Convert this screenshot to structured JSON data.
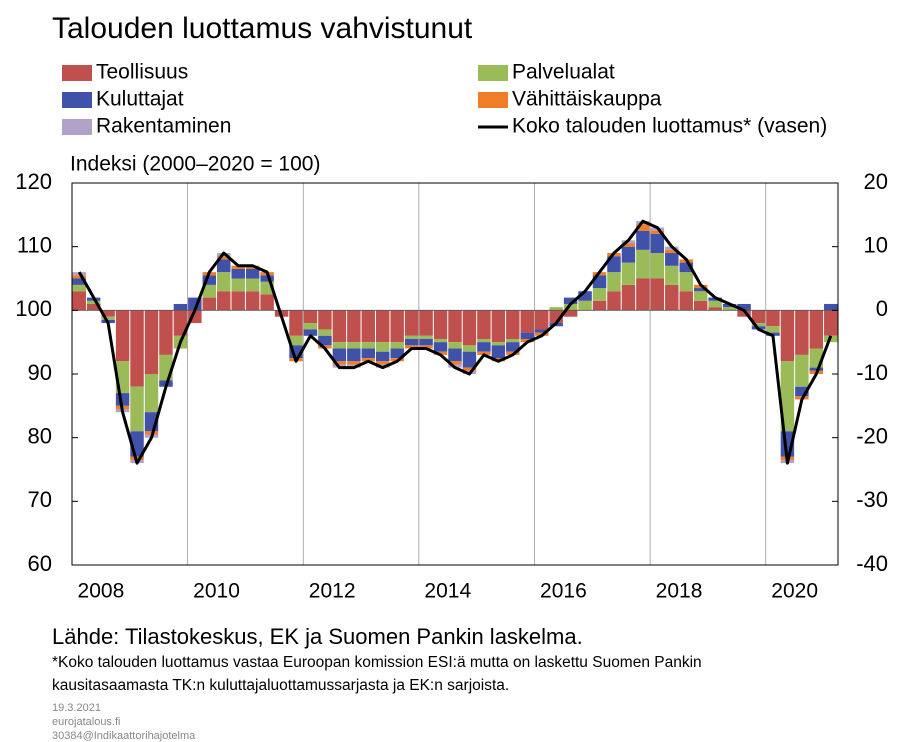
{
  "chart_data": {
    "type": "bar",
    "title": "Talouden luottamus vahvistunut",
    "ylabel": "Indeksi (2000–2020 = 100)",
    "source": "Lähde: Tilastokeskus, EK ja Suomen Pankin laskelma.",
    "note": [
      "*Koko talouden luottamus vastaa Euroopan komission ESI:ä mutta on laskettu Suomen Pankin",
      "kausitasaamasta TK:n kuluttajaluottamussarjasta ja EK:n sarjoista."
    ],
    "footer": [
      "19.3.2021",
      "eurojatalous.fi",
      "30384@Indikaattorihajotelma"
    ],
    "categories": [
      "2008",
      null,
      null,
      null,
      null,
      null,
      null,
      null,
      "2010",
      null,
      null,
      null,
      null,
      null,
      null,
      null,
      "2012",
      null,
      null,
      null,
      null,
      null,
      null,
      null,
      "2014",
      null,
      null,
      null,
      null,
      null,
      null,
      null,
      "2016",
      null,
      null,
      null,
      null,
      null,
      null,
      null,
      "2018",
      null,
      null,
      null,
      null,
      null,
      null,
      null,
      "2020",
      null,
      null,
      null,
      null
    ],
    "ylim": [
      60,
      120
    ],
    "yticks": [
      60,
      70,
      80,
      90,
      100,
      110,
      120
    ],
    "y2lim": [
      -40,
      20
    ],
    "y2ticks": [
      -40,
      -30,
      -20,
      -10,
      0,
      10,
      20
    ],
    "series": [
      {
        "name": "Teollisuus",
        "color": "#c0504d",
        "axis": "y2",
        "values": [
          3,
          1,
          -1,
          -8,
          -12,
          -10,
          -7,
          -4,
          -2,
          2,
          3,
          3,
          3,
          2.5,
          -1,
          -4,
          -2,
          -3,
          -5,
          -5,
          -5,
          -5,
          -5,
          -4,
          -4,
          -4.5,
          -5,
          -5.5,
          -4.5,
          -5,
          -4.5,
          -3.5,
          -3,
          -2,
          -1,
          0,
          1.5,
          3,
          4,
          5,
          5,
          4,
          3,
          1.5,
          0.5,
          0,
          -1,
          -2,
          -2.5,
          -8,
          -7,
          -6,
          -4
        ]
      },
      {
        "name": "Palvelualat",
        "color": "#9bbb59",
        "axis": "y2",
        "values": [
          1,
          0.5,
          -0.5,
          -5,
          -7,
          -6,
          -4,
          -2,
          0,
          2,
          3,
          2,
          2,
          2,
          0,
          -1.5,
          -1,
          -1,
          -1,
          -1,
          -1,
          -1.5,
          -1,
          -0.5,
          -0.5,
          -0.5,
          -1,
          -1,
          -0.5,
          -0.5,
          -0.5,
          0,
          0,
          0.5,
          1,
          1.5,
          2,
          3,
          3.5,
          4.5,
          4,
          3,
          3,
          1.5,
          1,
          0.5,
          0,
          -0.5,
          -1,
          -11,
          -5,
          -3,
          -1
        ]
      },
      {
        "name": "Kuluttajat",
        "color": "#3f51a8",
        "axis": "y2",
        "values": [
          1,
          0.5,
          -0.5,
          -2,
          -4,
          -3,
          -1,
          1,
          2,
          1.5,
          2,
          1.5,
          1.5,
          1,
          0,
          -2,
          -1,
          -1.5,
          -2,
          -2,
          -1.5,
          -1.5,
          -1.5,
          -1,
          -1,
          -1.5,
          -2,
          -2.5,
          -1.5,
          -2,
          -1.5,
          -1,
          -0.5,
          -0.5,
          1,
          1.5,
          2,
          2.5,
          2.5,
          3,
          3,
          2,
          1.5,
          0.5,
          0.5,
          0.5,
          1,
          -0.5,
          -0.5,
          -4,
          -1.5,
          -0.5,
          1
        ]
      },
      {
        "name": "Vähittäiskauppa",
        "color": "#f07d28",
        "axis": "y2",
        "values": [
          0.5,
          0,
          0,
          -0.5,
          -0.5,
          -0.5,
          0,
          0,
          0,
          0.5,
          0.5,
          0.5,
          0.5,
          0.5,
          0,
          -0.5,
          0,
          -0.5,
          -0.5,
          -0.5,
          -0.5,
          -0.5,
          -0.5,
          -0.5,
          -0.5,
          -0.5,
          -0.5,
          -0.5,
          -0.5,
          -0.5,
          -0.5,
          -0.5,
          -0.5,
          0,
          0,
          0,
          0.5,
          0.5,
          0.5,
          1,
          0.5,
          0.5,
          0.5,
          0.5,
          0,
          0,
          0,
          0,
          0,
          -0.5,
          -0.5,
          -0.5,
          0
        ]
      },
      {
        "name": "Rakentaminen",
        "color": "#b3a2c7",
        "axis": "y2",
        "values": [
          0.5,
          0,
          0,
          -0.5,
          -0.5,
          -0.5,
          0,
          0,
          0,
          0,
          0.5,
          0,
          0,
          0,
          0,
          0,
          0,
          0,
          -0.5,
          -0.5,
          0,
          -0.5,
          0,
          0,
          0,
          0,
          -0.5,
          -0.5,
          0,
          0,
          0,
          0,
          0,
          0,
          0,
          0,
          0,
          0,
          0.5,
          0.5,
          0.5,
          0.5,
          0,
          0,
          0,
          0,
          0,
          0,
          0,
          -0.5,
          0,
          0,
          0
        ]
      },
      {
        "name": "Koko talouden luottamus* (vasen)",
        "color": "#000000",
        "type": "line",
        "axis": "y",
        "values": [
          106,
          102,
          98,
          84,
          76,
          80,
          88,
          95,
          100,
          106,
          109,
          107,
          107,
          106,
          99,
          92,
          96,
          94,
          91,
          91,
          92,
          91,
          92,
          94,
          94,
          93,
          91,
          90,
          93,
          92,
          93,
          95,
          96,
          98,
          101,
          103,
          106,
          109,
          111,
          114,
          113,
          110,
          108,
          104,
          102,
          101,
          100,
          97,
          96,
          76,
          86,
          90,
          96
        ]
      }
    ]
  }
}
